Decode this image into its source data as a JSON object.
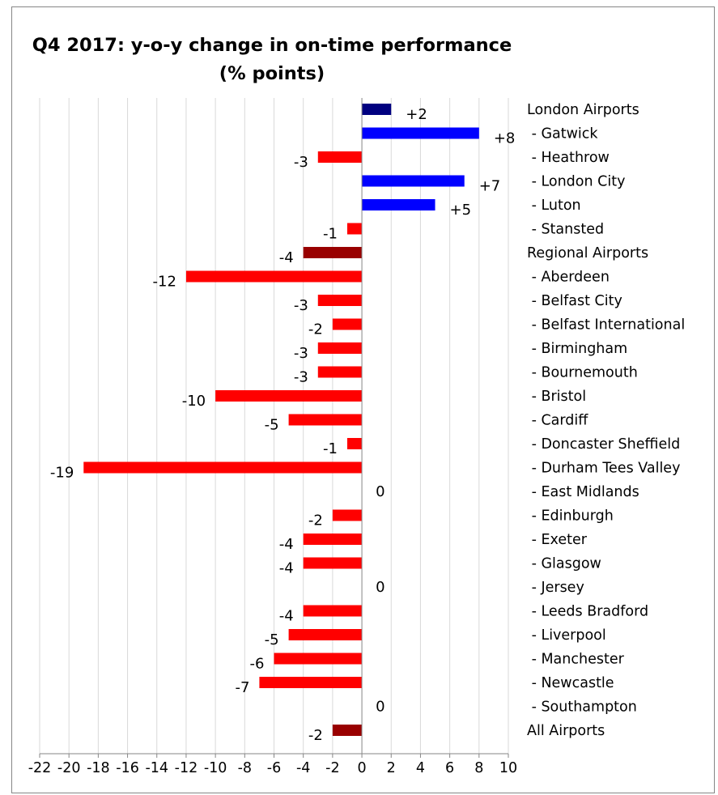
{
  "chart_data": {
    "type": "bar",
    "orientation": "horizontal",
    "title_lines": [
      "Q4 2017: y-o-y change in on-time performance",
      "(% points)"
    ],
    "xlim": [
      -22,
      10
    ],
    "xticks": [
      -22,
      -20,
      -18,
      -16,
      -14,
      -12,
      -10,
      -8,
      -6,
      -4,
      -2,
      0,
      2,
      4,
      6,
      8,
      10
    ],
    "grid": true,
    "categories": [
      "London Airports",
      " - Gatwick",
      " - Heathrow",
      " - London City",
      " - Luton",
      " - Stansted",
      "Regional Airports",
      " - Aberdeen",
      " - Belfast City",
      " - Belfast International",
      " - Birmingham",
      " - Bournemouth",
      " - Bristol",
      " - Cardiff",
      " - Doncaster Sheffield",
      " - Durham Tees Valley",
      " - East Midlands",
      " - Edinburgh",
      " - Exeter",
      " - Glasgow",
      " - Jersey",
      " - Leeds Bradford",
      " - Liverpool",
      " - Manchester",
      " - Newcastle",
      " - Southampton",
      "All Airports"
    ],
    "values": [
      2,
      8,
      -3,
      7,
      5,
      -1,
      -4,
      -12,
      -3,
      -2,
      -3,
      -3,
      -10,
      -5,
      -1,
      -19,
      0,
      -2,
      -4,
      -4,
      0,
      -4,
      -5,
      -6,
      -7,
      0,
      -2
    ],
    "data_labels": [
      "+2",
      "+8",
      "-3",
      "+7",
      "+5",
      "-1",
      "-4",
      "-12",
      "-3",
      "-2",
      "-3",
      "-3",
      "-10",
      "-5",
      "-1",
      "-19",
      "0",
      "-2",
      "-4",
      "-4",
      "0",
      "-4",
      "-5",
      "-6",
      "-7",
      "0",
      "-2"
    ],
    "colors": {
      "positive": "#0000ff",
      "negative": "#ff0000",
      "aggregate_positive": "#000080",
      "aggregate_negative": "#990000",
      "gridline": "#d9d9d9",
      "axis": "#868686"
    },
    "aggregate_rows": [
      "London Airports",
      "Regional Airports",
      "All Airports"
    ]
  }
}
